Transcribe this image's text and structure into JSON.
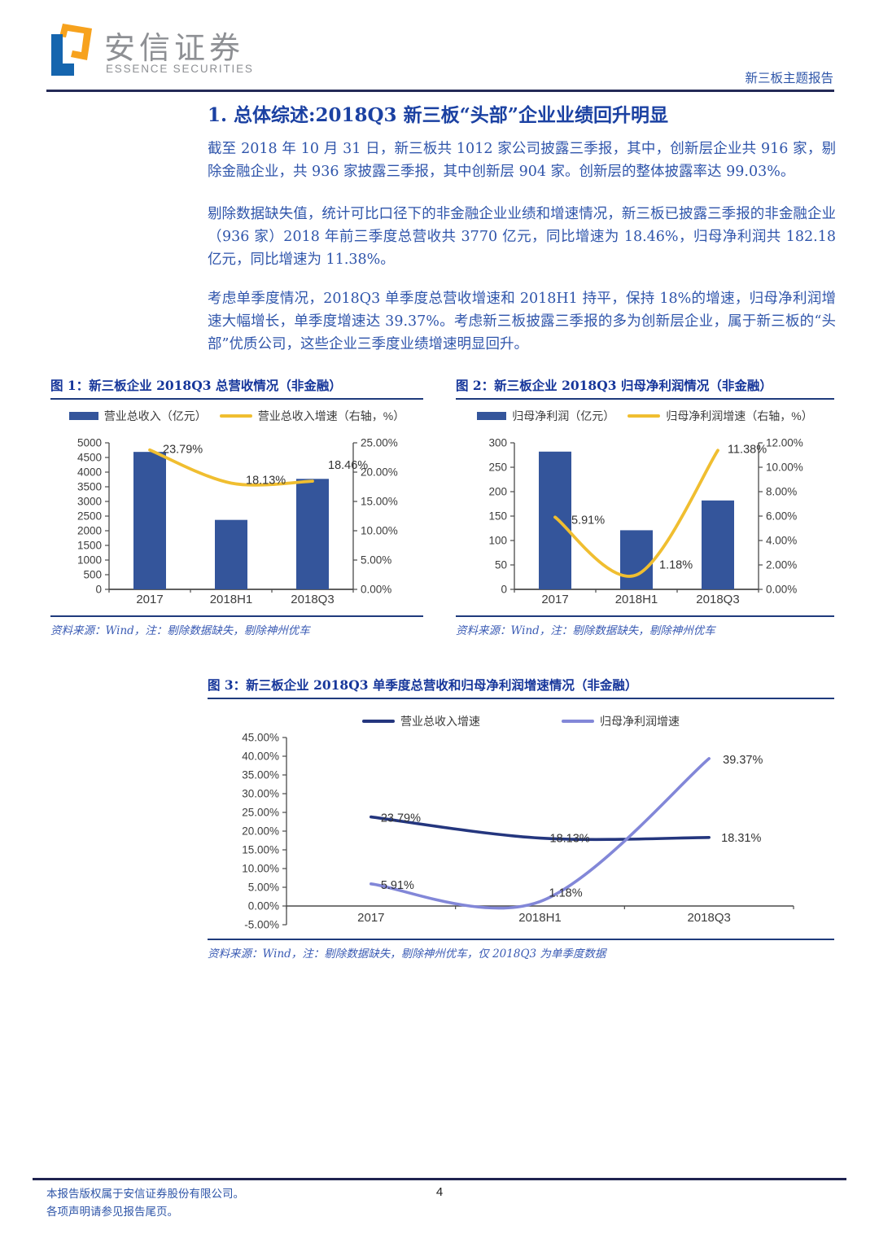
{
  "header": {
    "brand_cn": "安信证券",
    "brand_en": "ESSENCE SECURITIES",
    "report_tag": "新三板主题报告"
  },
  "article": {
    "title": "1. 总体综述:2018Q3 新三板“头部”企业业绩回升明显",
    "paragraphs": [
      "截至 2018 年 10 月 31 日，新三板共 1012 家公司披露三季报，其中，创新层企业共 916 家，剔除金融企业，共 936 家披露三季报，其中创新层 904 家。创新层的整体披露率达 99.03%。",
      "剔除数据缺失值，统计可比口径下的非金融企业业绩和增速情况，新三板已披露三季报的非金融企业（936 家）2018 年前三季度总营收共 3770 亿元，同比增速为 18.46%，归母净利润共 182.18 亿元，同比增速为 11.38%。",
      "考虑单季度情况，2018Q3 单季度总营收增速和 2018H1 持平，保持 18%的增速，归母净利润增速大幅增长，单季度增速达 39.37%。考虑新三板披露三季报的多为创新层企业，属于新三板的“头部”优质公司，这些企业三季度业绩增速明显回升。"
    ]
  },
  "colors": {
    "bar_blue": "#34559B",
    "line_yellow": "#F0BE30",
    "line_navy": "#24367E",
    "line_purple": "#8287D8",
    "text_blue": "#2F55AB"
  },
  "chart_data": [
    {
      "id": "fig1",
      "type": "bar",
      "title": "图 1：新三板企业 2018Q3 总营收情况（非金融）",
      "categories": [
        "2017",
        "2018H1",
        "2018Q3"
      ],
      "bar_series": {
        "name": "营业总收入（亿元）",
        "axis": "left",
        "color": "#34559B",
        "values": [
          4690,
          2370,
          3770
        ]
      },
      "line_series": {
        "name": "营业总收入增速（右轴，%）",
        "axis": "right",
        "color": "#F0BE30",
        "values": [
          23.79,
          18.13,
          18.46
        ],
        "labels": [
          "23.79%",
          "18.13%",
          "18.46%"
        ]
      },
      "left_axis": {
        "min": 0,
        "max": 5000,
        "step": 500
      },
      "right_axis": {
        "min": 0,
        "max": 25,
        "step": 5,
        "format": "percent"
      },
      "grid": "off",
      "source": "资料来源：Wind，注：剔除数据缺失，剔除神州优车"
    },
    {
      "id": "fig2",
      "type": "bar",
      "title": "图 2：新三板企业 2018Q3 归母净利润情况（非金融）",
      "categories": [
        "2017",
        "2018H1",
        "2018Q3"
      ],
      "bar_series": {
        "name": "归母净利润（亿元）",
        "axis": "left",
        "color": "#34559B",
        "values": [
          282,
          121,
          182
        ]
      },
      "line_series": {
        "name": "归母净利润增速（右轴，%）",
        "axis": "right",
        "color": "#F0BE30",
        "values": [
          5.91,
          1.18,
          11.38
        ],
        "labels": [
          "5.91%",
          "1.18%",
          "11.38%"
        ]
      },
      "left_axis": {
        "min": 0,
        "max": 300,
        "step": 50
      },
      "right_axis": {
        "min": 0,
        "max": 12,
        "step": 2,
        "format": "percent"
      },
      "grid": "off",
      "source": "资料来源：Wind，注：剔除数据缺失，剔除神州优车"
    },
    {
      "id": "fig3",
      "type": "line",
      "title": "图 3：新三板企业 2018Q3 单季度总营收和归母净利润增速情况（非金融）",
      "categories": [
        "2017",
        "2018H1",
        "2018Q3"
      ],
      "series": [
        {
          "name": "营业总收入增速",
          "color": "#24367E",
          "values": [
            23.79,
            18.13,
            18.31
          ],
          "labels": [
            "23.79%",
            "18.13%",
            "18.31%"
          ]
        },
        {
          "name": "归母净利润增速",
          "color": "#8287D8",
          "values": [
            5.91,
            1.18,
            39.37
          ],
          "labels": [
            "5.91%",
            "1.18%",
            "39.37%"
          ]
        }
      ],
      "y_axis": {
        "min": -5,
        "max": 45,
        "step": 5,
        "format": "percent"
      },
      "grid": "off",
      "legend_position": "top",
      "source": "资料来源：Wind，注：剔除数据缺失，剔除神州优车，仅 2018Q3 为单季度数据"
    }
  ],
  "footer": {
    "line1": "本报告版权属于安信证券股份有限公司。",
    "line2": "各项声明请参见报告尾页。",
    "page_number": "4"
  }
}
